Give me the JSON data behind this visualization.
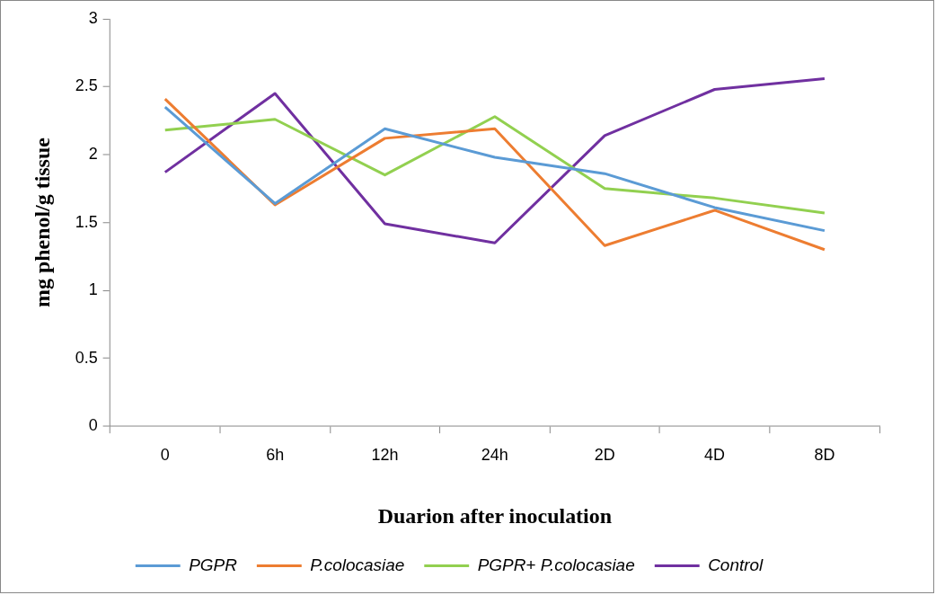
{
  "chart_data": {
    "type": "line",
    "xlabel": "Duarion after inoculation",
    "ylabel": "mg phenol/g tissue",
    "categories": [
      "0",
      "6h",
      "12h",
      "24h",
      "2D",
      "4D",
      "8D"
    ],
    "series": [
      {
        "name": "PGPR",
        "color": "#5b9bd5",
        "values": [
          2.35,
          1.64,
          2.19,
          1.98,
          1.86,
          1.61,
          1.44
        ]
      },
      {
        "name": "P.colocasiae",
        "color": "#ed7d31",
        "values": [
          2.41,
          1.63,
          2.12,
          2.19,
          1.33,
          1.59,
          1.3
        ]
      },
      {
        "name": "PGPR+ P.colocasiae",
        "color": "#92d050",
        "values": [
          2.18,
          2.26,
          1.85,
          2.28,
          1.75,
          1.68,
          1.57
        ]
      },
      {
        "name": "Control",
        "color": "#7030a0",
        "values": [
          1.87,
          2.45,
          1.49,
          1.35,
          2.14,
          2.48,
          2.56
        ]
      }
    ],
    "ylim": [
      0,
      3
    ],
    "yticks": [
      0,
      0.5,
      1,
      1.5,
      2,
      2.5,
      3
    ],
    "grid": false,
    "legend": "bottom",
    "marker": "none",
    "line_style": "solid"
  }
}
